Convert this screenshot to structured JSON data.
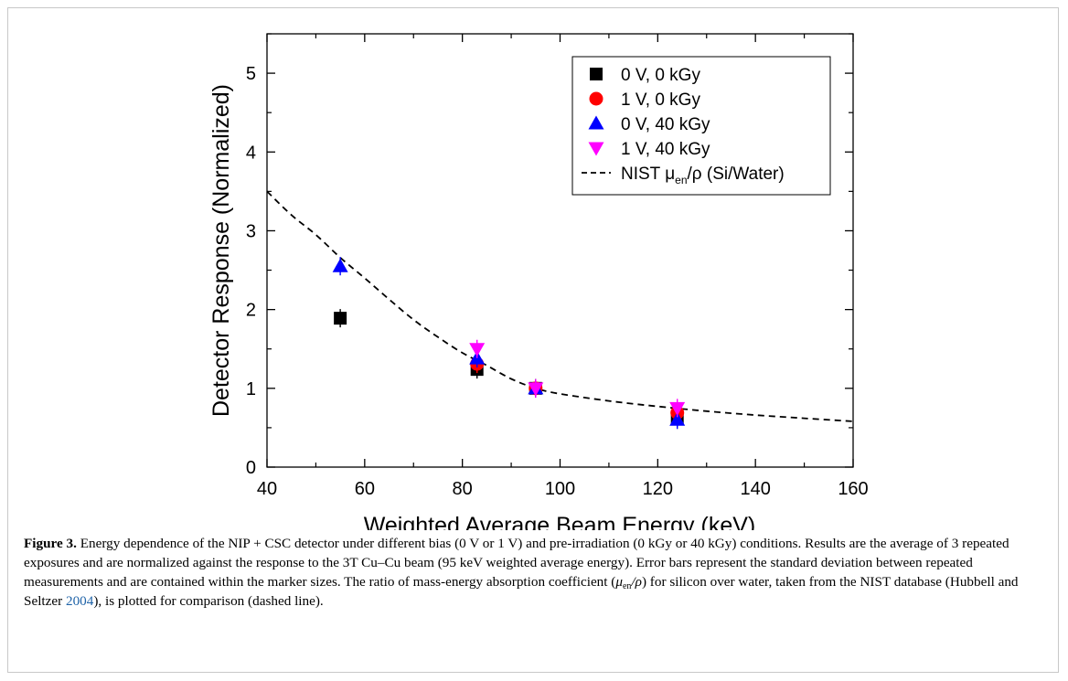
{
  "chart_data": {
    "type": "scatter",
    "xlabel": "Weighted Average Beam Energy (keV)",
    "ylabel": "Detector Response (Normalized)",
    "xlim": [
      40,
      160
    ],
    "ylim": [
      0,
      5.5
    ],
    "x_ticks": [
      40,
      60,
      80,
      100,
      120,
      140,
      160
    ],
    "y_ticks": [
      0,
      1,
      2,
      3,
      4,
      5
    ],
    "grid": false,
    "legend_position": "top-right",
    "series": [
      {
        "name": "0 V, 0 kGy",
        "marker": "square",
        "color": "#000000",
        "points": [
          {
            "x": 55,
            "y": 1.89
          },
          {
            "x": 83,
            "y": 1.24
          },
          {
            "x": 95,
            "y": 1.0
          },
          {
            "x": 124,
            "y": 0.63
          }
        ]
      },
      {
        "name": "1 V, 0 kGy",
        "marker": "circle",
        "color": "#ff0000",
        "points": [
          {
            "x": 83,
            "y": 1.31
          },
          {
            "x": 95,
            "y": 1.0
          },
          {
            "x": 124,
            "y": 0.69
          }
        ]
      },
      {
        "name": "0 V, 40 kGy",
        "marker": "triangle-up",
        "color": "#0000ff",
        "points": [
          {
            "x": 55,
            "y": 2.55
          },
          {
            "x": 83,
            "y": 1.38
          },
          {
            "x": 95,
            "y": 1.0
          },
          {
            "x": 124,
            "y": 0.6
          }
        ]
      },
      {
        "name": "1 V, 40 kGy",
        "marker": "triangle-down",
        "color": "#ff00ff",
        "points": [
          {
            "x": 83,
            "y": 1.5
          },
          {
            "x": 95,
            "y": 1.0
          },
          {
            "x": 124,
            "y": 0.75
          }
        ]
      }
    ],
    "reference_line": {
      "name_prefix": "NIST μ",
      "name_sub": "en",
      "name_suffix": "/ρ (Si/Water)",
      "style": "dashed",
      "color": "#000000",
      "points": [
        {
          "x": 40,
          "y": 3.5
        },
        {
          "x": 45,
          "y": 3.2
        },
        {
          "x": 50,
          "y": 2.95
        },
        {
          "x": 55,
          "y": 2.66
        },
        {
          "x": 60,
          "y": 2.4
        },
        {
          "x": 65,
          "y": 2.13
        },
        {
          "x": 70,
          "y": 1.87
        },
        {
          "x": 75,
          "y": 1.65
        },
        {
          "x": 80,
          "y": 1.45
        },
        {
          "x": 85,
          "y": 1.29
        },
        {
          "x": 90,
          "y": 1.12
        },
        {
          "x": 95,
          "y": 1.0
        },
        {
          "x": 100,
          "y": 0.93
        },
        {
          "x": 110,
          "y": 0.84
        },
        {
          "x": 120,
          "y": 0.77
        },
        {
          "x": 130,
          "y": 0.71
        },
        {
          "x": 140,
          "y": 0.66
        },
        {
          "x": 150,
          "y": 0.62
        },
        {
          "x": 160,
          "y": 0.58
        }
      ]
    }
  },
  "caption": {
    "figure_label": "Figure 3.",
    "part1": " Energy dependence of the NIP + CSC detector under different bias (0 V or 1 V) and pre-irradiation (0 kGy or 40 kGy) conditions. Results are the average of 3 repeated exposures and are normalized against the response to the 3T Cu–Cu beam (95 keV weighted average energy). Error bars represent the standard deviation between repeated measurements and are contained within the marker sizes. The ratio of mass-energy absorption coefficient (",
    "mu": "μ",
    "mu_sub": "en",
    "slash_rho": "/ρ",
    "part2": ") for silicon over water, taken from the NIST database (Hubbell and Seltzer ",
    "cite_year": "2004",
    "part3": "), is plotted for comparison (dashed line)."
  }
}
